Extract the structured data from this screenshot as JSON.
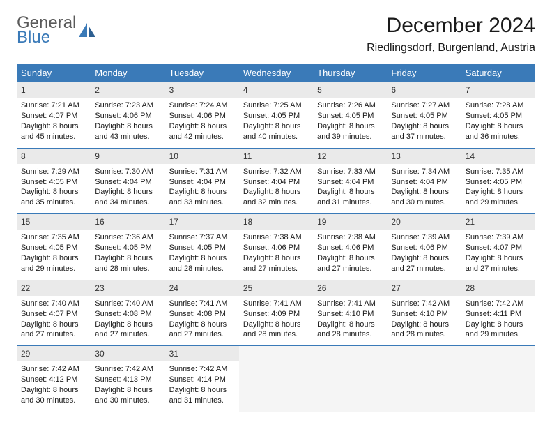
{
  "logo": {
    "general": "General",
    "blue": "Blue",
    "icon_fill": "#3a7ab8"
  },
  "title": "December 2024",
  "location": "Riedlingsdorf, Burgenland, Austria",
  "colors": {
    "header_bg": "#3a7ab8",
    "header_fg": "#ffffff",
    "daynum_bg": "#eaeaea",
    "cell_bg": "#ffffff",
    "blank_bg": "#f5f5f5",
    "week_divider": "#3a7ab8",
    "text": "#1a1a1a"
  },
  "typography": {
    "title_fontsize": 30,
    "location_fontsize": 16,
    "header_fontsize": 13,
    "daynum_fontsize": 12,
    "cell_fontsize": 11,
    "logo_fontsize": 24,
    "font_family": "Arial"
  },
  "day_headers": [
    "Sunday",
    "Monday",
    "Tuesday",
    "Wednesday",
    "Thursday",
    "Friday",
    "Saturday"
  ],
  "weeks": [
    [
      {
        "num": "1",
        "sunrise": "Sunrise: 7:21 AM",
        "sunset": "Sunset: 4:07 PM",
        "daylight": "Daylight: 8 hours and 45 minutes."
      },
      {
        "num": "2",
        "sunrise": "Sunrise: 7:23 AM",
        "sunset": "Sunset: 4:06 PM",
        "daylight": "Daylight: 8 hours and 43 minutes."
      },
      {
        "num": "3",
        "sunrise": "Sunrise: 7:24 AM",
        "sunset": "Sunset: 4:06 PM",
        "daylight": "Daylight: 8 hours and 42 minutes."
      },
      {
        "num": "4",
        "sunrise": "Sunrise: 7:25 AM",
        "sunset": "Sunset: 4:05 PM",
        "daylight": "Daylight: 8 hours and 40 minutes."
      },
      {
        "num": "5",
        "sunrise": "Sunrise: 7:26 AM",
        "sunset": "Sunset: 4:05 PM",
        "daylight": "Daylight: 8 hours and 39 minutes."
      },
      {
        "num": "6",
        "sunrise": "Sunrise: 7:27 AM",
        "sunset": "Sunset: 4:05 PM",
        "daylight": "Daylight: 8 hours and 37 minutes."
      },
      {
        "num": "7",
        "sunrise": "Sunrise: 7:28 AM",
        "sunset": "Sunset: 4:05 PM",
        "daylight": "Daylight: 8 hours and 36 minutes."
      }
    ],
    [
      {
        "num": "8",
        "sunrise": "Sunrise: 7:29 AM",
        "sunset": "Sunset: 4:05 PM",
        "daylight": "Daylight: 8 hours and 35 minutes."
      },
      {
        "num": "9",
        "sunrise": "Sunrise: 7:30 AM",
        "sunset": "Sunset: 4:04 PM",
        "daylight": "Daylight: 8 hours and 34 minutes."
      },
      {
        "num": "10",
        "sunrise": "Sunrise: 7:31 AM",
        "sunset": "Sunset: 4:04 PM",
        "daylight": "Daylight: 8 hours and 33 minutes."
      },
      {
        "num": "11",
        "sunrise": "Sunrise: 7:32 AM",
        "sunset": "Sunset: 4:04 PM",
        "daylight": "Daylight: 8 hours and 32 minutes."
      },
      {
        "num": "12",
        "sunrise": "Sunrise: 7:33 AM",
        "sunset": "Sunset: 4:04 PM",
        "daylight": "Daylight: 8 hours and 31 minutes."
      },
      {
        "num": "13",
        "sunrise": "Sunrise: 7:34 AM",
        "sunset": "Sunset: 4:04 PM",
        "daylight": "Daylight: 8 hours and 30 minutes."
      },
      {
        "num": "14",
        "sunrise": "Sunrise: 7:35 AM",
        "sunset": "Sunset: 4:05 PM",
        "daylight": "Daylight: 8 hours and 29 minutes."
      }
    ],
    [
      {
        "num": "15",
        "sunrise": "Sunrise: 7:35 AM",
        "sunset": "Sunset: 4:05 PM",
        "daylight": "Daylight: 8 hours and 29 minutes."
      },
      {
        "num": "16",
        "sunrise": "Sunrise: 7:36 AM",
        "sunset": "Sunset: 4:05 PM",
        "daylight": "Daylight: 8 hours and 28 minutes."
      },
      {
        "num": "17",
        "sunrise": "Sunrise: 7:37 AM",
        "sunset": "Sunset: 4:05 PM",
        "daylight": "Daylight: 8 hours and 28 minutes."
      },
      {
        "num": "18",
        "sunrise": "Sunrise: 7:38 AM",
        "sunset": "Sunset: 4:06 PM",
        "daylight": "Daylight: 8 hours and 27 minutes."
      },
      {
        "num": "19",
        "sunrise": "Sunrise: 7:38 AM",
        "sunset": "Sunset: 4:06 PM",
        "daylight": "Daylight: 8 hours and 27 minutes."
      },
      {
        "num": "20",
        "sunrise": "Sunrise: 7:39 AM",
        "sunset": "Sunset: 4:06 PM",
        "daylight": "Daylight: 8 hours and 27 minutes."
      },
      {
        "num": "21",
        "sunrise": "Sunrise: 7:39 AM",
        "sunset": "Sunset: 4:07 PM",
        "daylight": "Daylight: 8 hours and 27 minutes."
      }
    ],
    [
      {
        "num": "22",
        "sunrise": "Sunrise: 7:40 AM",
        "sunset": "Sunset: 4:07 PM",
        "daylight": "Daylight: 8 hours and 27 minutes."
      },
      {
        "num": "23",
        "sunrise": "Sunrise: 7:40 AM",
        "sunset": "Sunset: 4:08 PM",
        "daylight": "Daylight: 8 hours and 27 minutes."
      },
      {
        "num": "24",
        "sunrise": "Sunrise: 7:41 AM",
        "sunset": "Sunset: 4:08 PM",
        "daylight": "Daylight: 8 hours and 27 minutes."
      },
      {
        "num": "25",
        "sunrise": "Sunrise: 7:41 AM",
        "sunset": "Sunset: 4:09 PM",
        "daylight": "Daylight: 8 hours and 28 minutes."
      },
      {
        "num": "26",
        "sunrise": "Sunrise: 7:41 AM",
        "sunset": "Sunset: 4:10 PM",
        "daylight": "Daylight: 8 hours and 28 minutes."
      },
      {
        "num": "27",
        "sunrise": "Sunrise: 7:42 AM",
        "sunset": "Sunset: 4:10 PM",
        "daylight": "Daylight: 8 hours and 28 minutes."
      },
      {
        "num": "28",
        "sunrise": "Sunrise: 7:42 AM",
        "sunset": "Sunset: 4:11 PM",
        "daylight": "Daylight: 8 hours and 29 minutes."
      }
    ],
    [
      {
        "num": "29",
        "sunrise": "Sunrise: 7:42 AM",
        "sunset": "Sunset: 4:12 PM",
        "daylight": "Daylight: 8 hours and 30 minutes."
      },
      {
        "num": "30",
        "sunrise": "Sunrise: 7:42 AM",
        "sunset": "Sunset: 4:13 PM",
        "daylight": "Daylight: 8 hours and 30 minutes."
      },
      {
        "num": "31",
        "sunrise": "Sunrise: 7:42 AM",
        "sunset": "Sunset: 4:14 PM",
        "daylight": "Daylight: 8 hours and 31 minutes."
      },
      null,
      null,
      null,
      null
    ]
  ]
}
